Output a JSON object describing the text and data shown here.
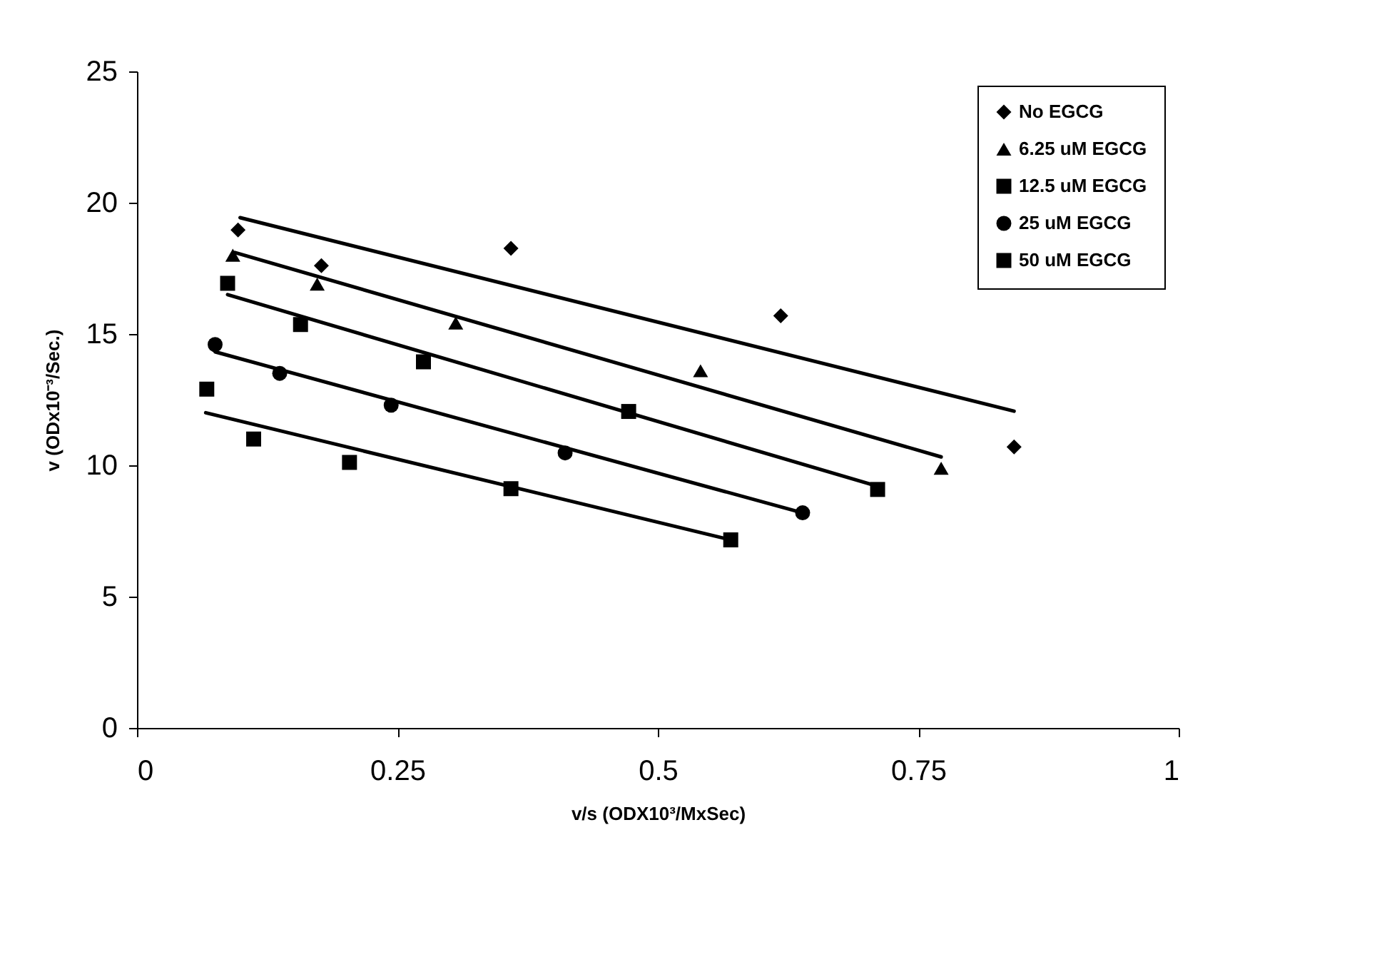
{
  "chart_data": {
    "type": "scatter",
    "xlabel": "v/s (ODX10³/MxSec)",
    "ylabel": "v (ODx10⁻³/Sec.)",
    "xlim": [
      0,
      1
    ],
    "xticks": [
      0,
      0.25,
      0.5,
      0.75,
      1
    ],
    "ylim": [
      0,
      25
    ],
    "yticks": [
      0,
      5,
      10,
      15,
      20,
      25
    ],
    "grid": false,
    "legend": "top right",
    "series": [
      {
        "name": "No EGCG",
        "color": "#000000",
        "marker": "diamond",
        "x": [
          0.097,
          0.177,
          0.359,
          0.618,
          0.842
        ],
        "values": [
          18.96,
          17.6,
          18.26,
          15.69,
          10.7
        ]
      },
      {
        "name": "6.25 uM EGCG",
        "color": "#000000",
        "marker": "triangle",
        "x": [
          0.092,
          0.173,
          0.306,
          0.541,
          0.772
        ],
        "values": [
          18.0,
          16.9,
          15.42,
          13.6,
          9.89
        ]
      },
      {
        "name": "12.5 uM EGCG",
        "color": "#000000",
        "marker": "square",
        "x": [
          0.087,
          0.157,
          0.275,
          0.472,
          0.711
        ],
        "values": [
          16.93,
          15.36,
          13.94,
          12.05,
          9.08
        ]
      },
      {
        "name": "25 uM EGCG",
        "color": "#000000",
        "marker": "circle",
        "x": [
          0.075,
          0.137,
          0.244,
          0.411,
          0.639
        ],
        "values": [
          14.6,
          13.5,
          12.29,
          10.47,
          8.19
        ]
      },
      {
        "name": "50 uM EGCG",
        "color": "#000000",
        "marker": "square",
        "x": [
          0.067,
          0.112,
          0.204,
          0.359,
          0.57
        ],
        "values": [
          12.9,
          11.0,
          10.11,
          9.11,
          7.16
        ]
      },
      {
        "type": "line",
        "color": "#000000",
        "x": [
          0.099,
          0.842
        ],
        "values": [
          19.43,
          12.06
        ]
      },
      {
        "type": "line",
        "color": "#000000",
        "x": [
          0.094,
          0.772
        ],
        "values": [
          18.1,
          10.32
        ]
      },
      {
        "type": "line",
        "color": "#000000",
        "x": [
          0.087,
          0.711
        ],
        "values": [
          16.5,
          9.2
        ]
      },
      {
        "type": "line",
        "color": "#000000",
        "x": [
          0.075,
          0.639
        ],
        "values": [
          14.32,
          8.19
        ]
      },
      {
        "type": "line",
        "color": "#000000",
        "x": [
          0.066,
          0.57
        ],
        "values": [
          12.0,
          7.16
        ]
      }
    ]
  }
}
